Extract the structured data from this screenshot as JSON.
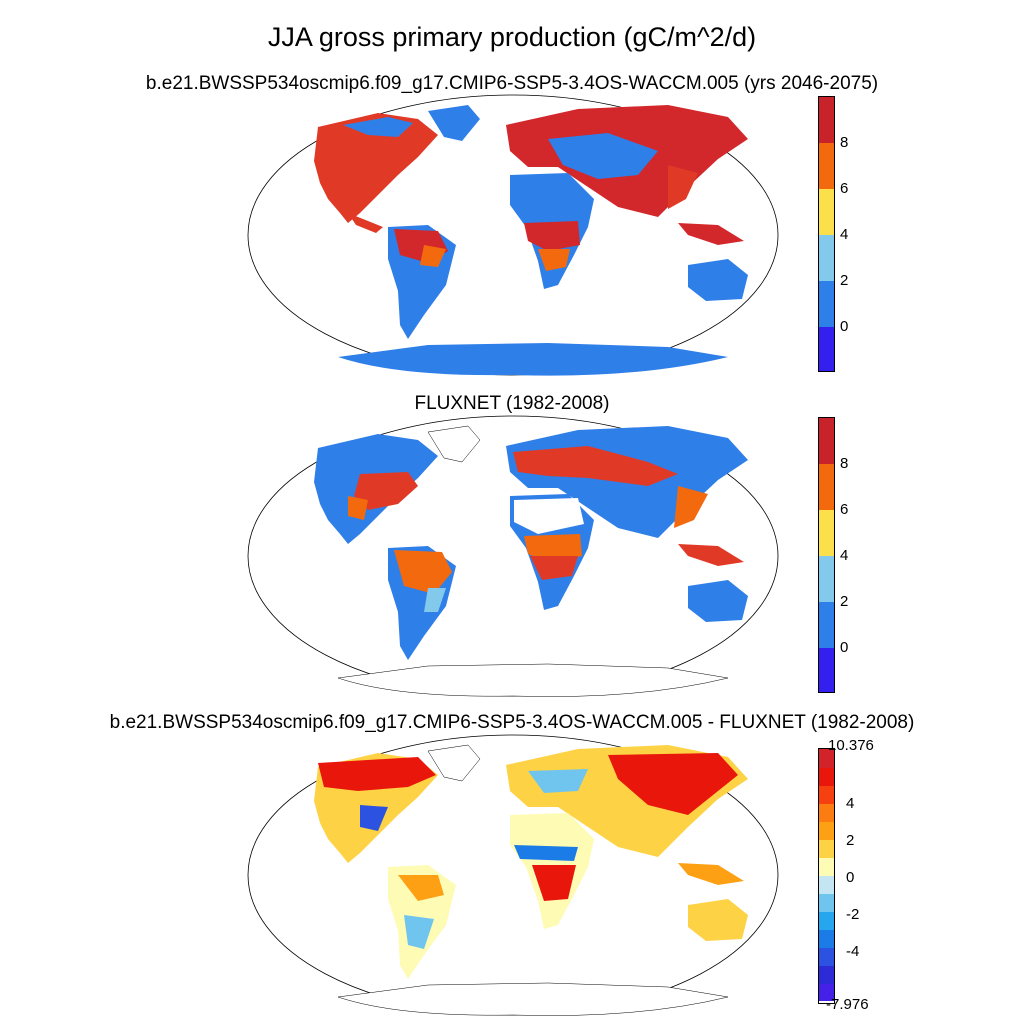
{
  "title": "JJA gross primary production (gC/m^2/d)",
  "panels": [
    {
      "title": "b.e21.BWSSP534oscmip6.f09_g17.CMIP6-SSP5-3.4OS-WACCM.005 (yrs 2046-2075)",
      "colorbar": {
        "colors": [
          "#c8232b",
          "#f36a0e",
          "#fbe04b",
          "#82c9ec",
          "#2f7fe8",
          "#3320ee"
        ],
        "tick_labels": [
          "8",
          "6",
          "4",
          "2",
          "0"
        ]
      }
    },
    {
      "title": "FLUXNET (1982-2008)",
      "colorbar": {
        "colors": [
          "#c8232b",
          "#f36a0e",
          "#fbe04b",
          "#82c9ec",
          "#2f7fe8",
          "#3320ee"
        ],
        "tick_labels": [
          "8",
          "6",
          "4",
          "2",
          "0"
        ]
      }
    },
    {
      "title": "b.e21.BWSSP534oscmip6.f09_g17.CMIP6-SSP5-3.4OS-WACCM.005 - FLUXNET (1982-2008)",
      "colorbar": {
        "colors": [
          "#d2232a",
          "#e8160b",
          "#f7400f",
          "#fb7d12",
          "#fda014",
          "#fed245",
          "#fefbb4",
          "#c4e6f3",
          "#6fc5ee",
          "#27a6f0",
          "#1b7ce8",
          "#2b52e0",
          "#2d2bd5",
          "#4520e6"
        ],
        "tick_labels": [
          "10.376",
          "4",
          "2",
          "0",
          "-2",
          "-4",
          "-7.976"
        ]
      }
    }
  ]
}
